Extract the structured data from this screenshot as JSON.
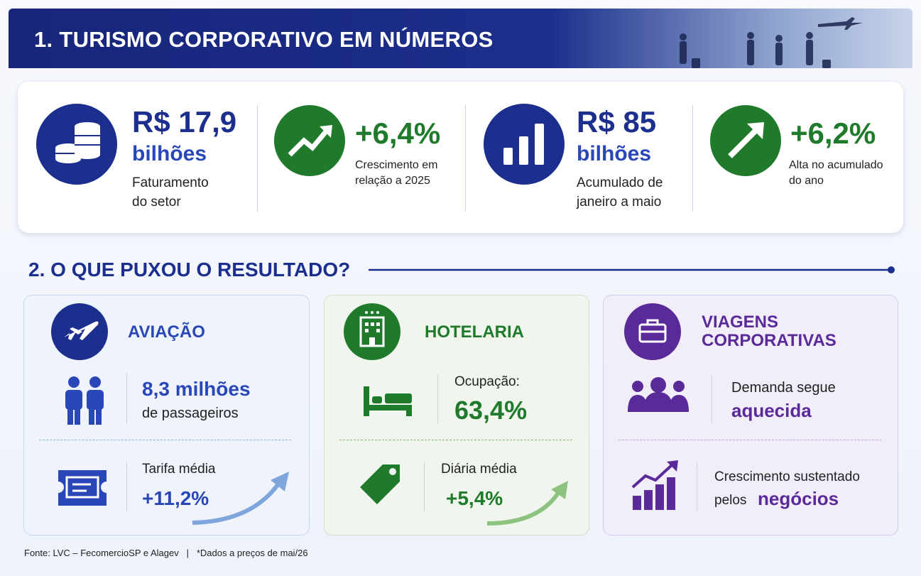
{
  "section1": {
    "title": "1. TURISMO CORPORATIVO EM NÚMEROS",
    "stats": [
      {
        "value": "R$ 17,9",
        "unit": "bilhões",
        "label": [
          "Faturamento",
          "do setor"
        ]
      },
      {
        "value": "+6,4%",
        "label": [
          "Crescimento em",
          "relação a 2025"
        ]
      },
      {
        "value": "R$ 85",
        "unit": "bilhões",
        "label": [
          "Acumulado de",
          "janeiro a maio"
        ]
      },
      {
        "value": "+6,2%",
        "label": [
          "Alta no acumulado",
          "do ano"
        ]
      }
    ]
  },
  "section2": {
    "title": "2. O QUE PUXOU O RESULTADO?",
    "cards": [
      {
        "title": [
          "AVIAÇÃO"
        ],
        "items": [
          {
            "value": "8,3 milhões",
            "text": "de passageiros"
          },
          {
            "text": "Tarifa média",
            "value": "+11,2%"
          }
        ]
      },
      {
        "title": [
          "HOTELARIA"
        ],
        "items": [
          {
            "text": "Ocupação:",
            "value": "63,4%"
          },
          {
            "text": "Diária média",
            "value": "+5,4%"
          }
        ]
      },
      {
        "title": [
          "VIAGENS",
          "CORPORATIVAS"
        ],
        "items": [
          {
            "text": "Demanda segue",
            "value": "aquecida"
          },
          {
            "text": "Crescimento sustentado",
            "prefix": "pelos",
            "value": "negócios"
          }
        ]
      }
    ]
  },
  "footer": {
    "source": "Fonte: LVC – FecomercioSP e Alagev",
    "separator": "|",
    "note": "*Dados a preços de mai/26"
  }
}
